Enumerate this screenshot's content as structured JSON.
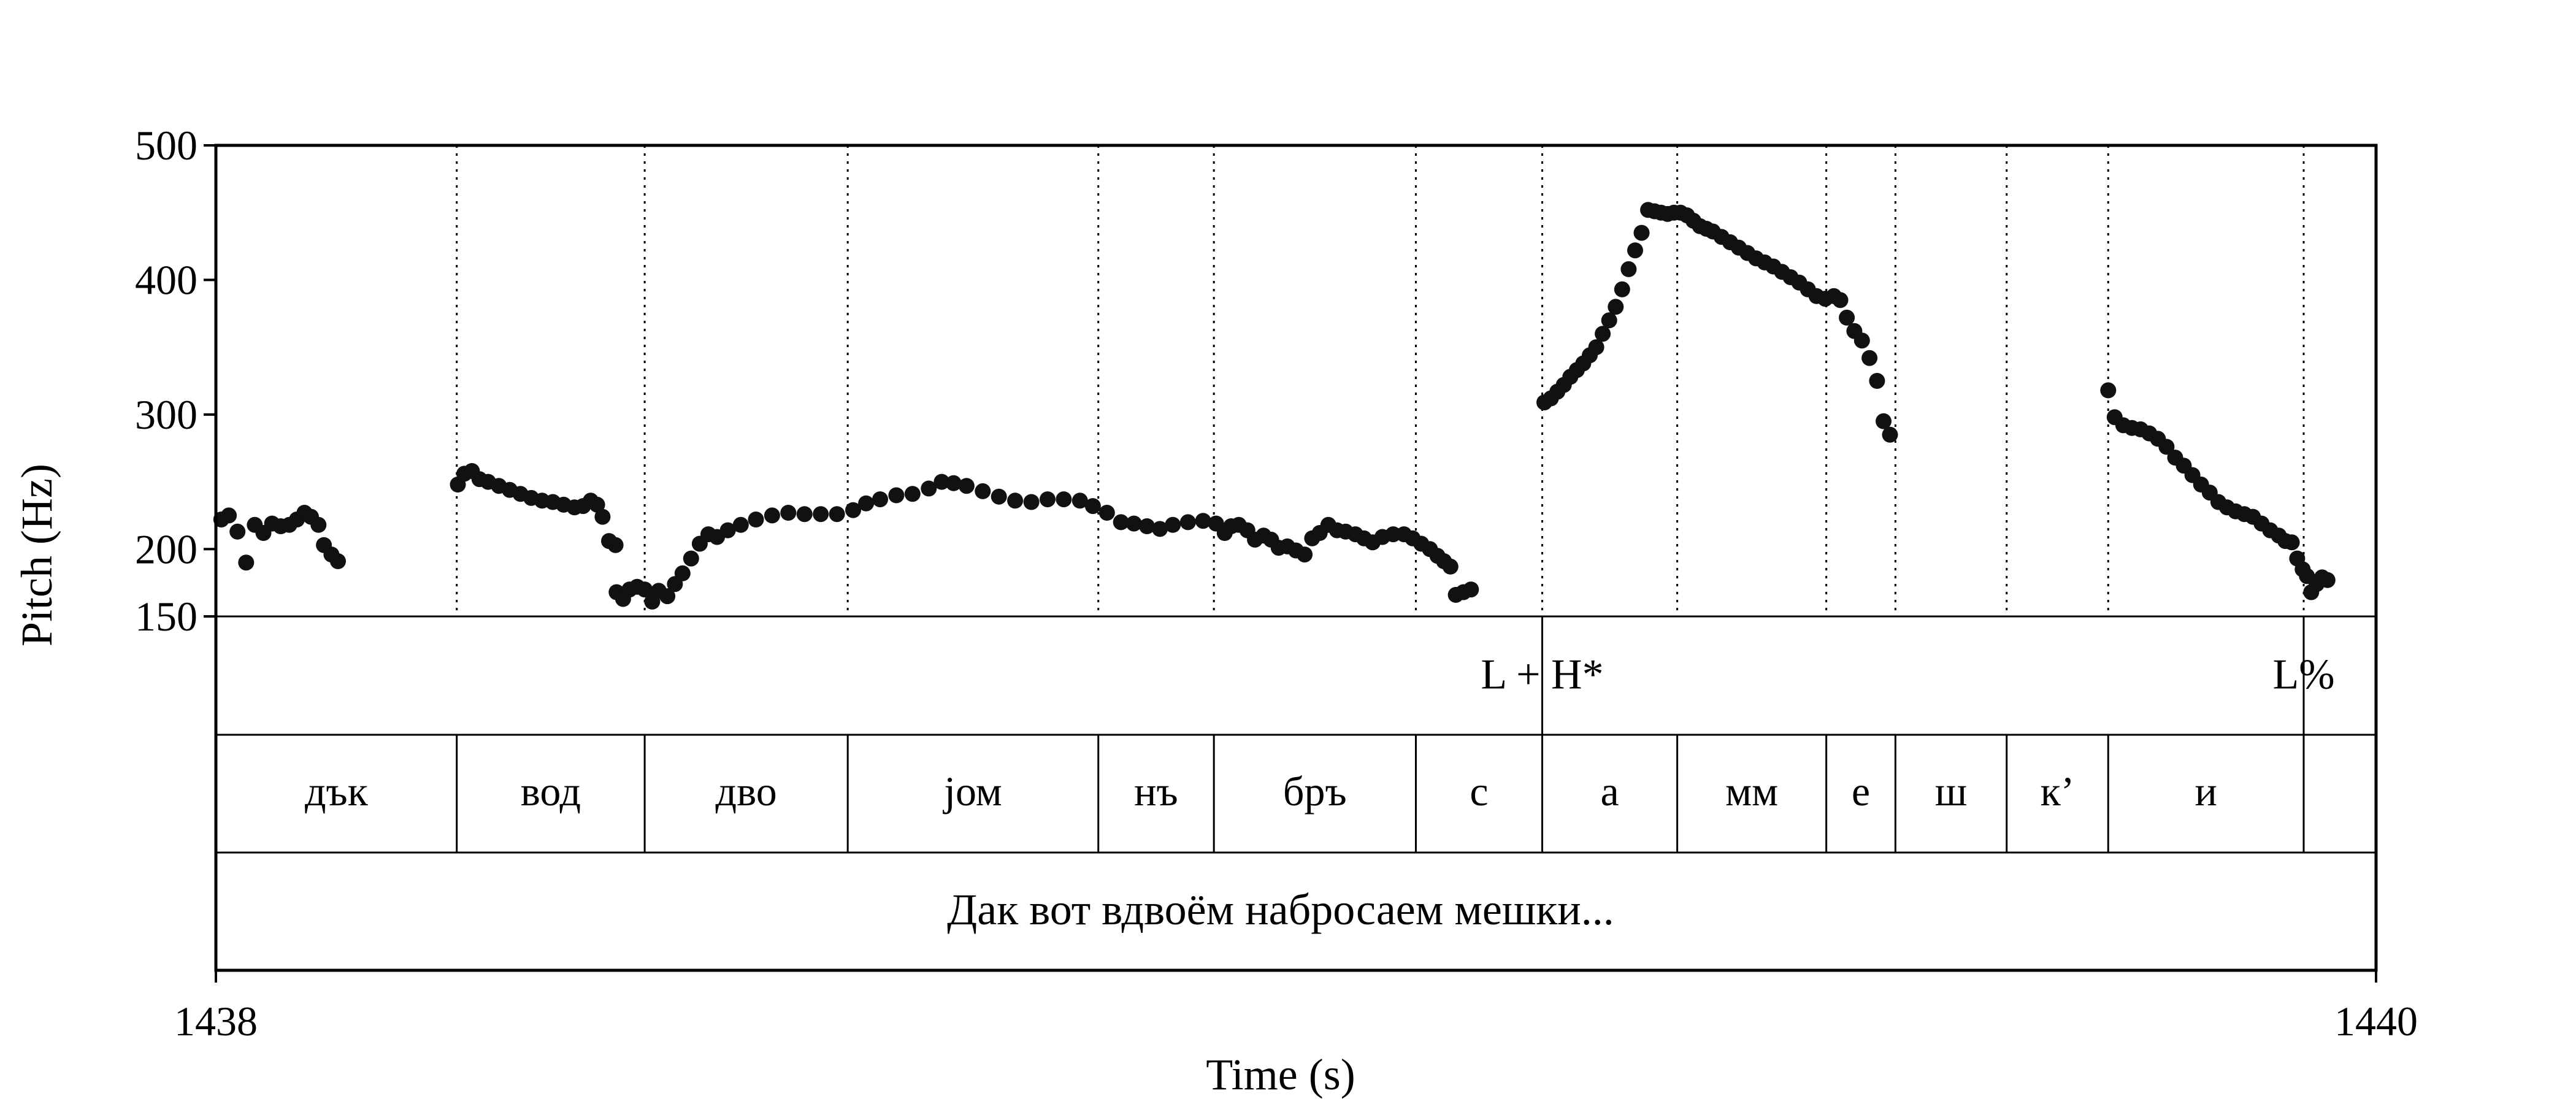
{
  "chart_data": {
    "type": "scatter",
    "xlabel": "Time (s)",
    "ylabel": "Pitch (Hz)",
    "xlim": [
      1438,
      1440
    ],
    "ylim": [
      150,
      500
    ],
    "x_ticks": [
      "1438",
      "1440"
    ],
    "y_ticks": [
      {
        "value": 500,
        "label": "500"
      },
      {
        "value": 400,
        "label": "400"
      },
      {
        "value": 300,
        "label": "300"
      },
      {
        "value": 200,
        "label": "200"
      },
      {
        "value": 150,
        "label": "150"
      }
    ],
    "grid": false,
    "boundaries": [
      1438.223,
      1438.397,
      1438.585,
      1438.817,
      1438.924,
      1439.111,
      1439.228,
      1439.353,
      1439.491,
      1439.555,
      1439.658,
      1439.752,
      1439.933
    ],
    "tone_tier": [
      {
        "label": "L + H*",
        "time": 1439.228
      },
      {
        "label": "L%",
        "time": 1439.933
      }
    ],
    "segments": [
      {
        "label": "дък",
        "start": 1438.0,
        "end": 1438.223
      },
      {
        "label": "вод",
        "start": 1438.223,
        "end": 1438.397
      },
      {
        "label": "дво",
        "start": 1438.397,
        "end": 1438.585
      },
      {
        "label": "jом",
        "start": 1438.585,
        "end": 1438.817
      },
      {
        "label": "нъ",
        "start": 1438.817,
        "end": 1438.924
      },
      {
        "label": "бръ",
        "start": 1438.924,
        "end": 1439.111
      },
      {
        "label": "с",
        "start": 1439.111,
        "end": 1439.228
      },
      {
        "label": "а",
        "start": 1439.228,
        "end": 1439.353
      },
      {
        "label": "мм",
        "start": 1439.353,
        "end": 1439.491
      },
      {
        "label": "е",
        "start": 1439.491,
        "end": 1439.555
      },
      {
        "label": "ш",
        "start": 1439.555,
        "end": 1439.658
      },
      {
        "label": "к’",
        "start": 1439.658,
        "end": 1439.752
      },
      {
        "label": "и",
        "start": 1439.752,
        "end": 1439.933
      },
      {
        "label": "",
        "start": 1439.933,
        "end": 1440.0
      }
    ],
    "sentence": "Дак вот вдвоём набросаем мешки...",
    "pitch_contours": [
      [
        [
          1438.005,
          222
        ],
        [
          1438.012,
          225
        ],
        [
          1438.02,
          213
        ],
        [
          1438.028,
          190
        ],
        [
          1438.036,
          218
        ],
        [
          1438.044,
          212
        ],
        [
          1438.052,
          219
        ],
        [
          1438.06,
          217
        ],
        [
          1438.068,
          218
        ],
        [
          1438.075,
          222
        ],
        [
          1438.082,
          227
        ],
        [
          1438.088,
          224
        ],
        [
          1438.095,
          218
        ],
        [
          1438.1,
          203
        ],
        [
          1438.107,
          196
        ],
        [
          1438.113,
          191
        ]
      ],
      [
        [
          1438.224,
          248
        ],
        [
          1438.23,
          256
        ],
        [
          1438.237,
          258
        ],
        [
          1438.244,
          252
        ],
        [
          1438.252,
          250
        ],
        [
          1438.262,
          247
        ],
        [
          1438.272,
          244
        ],
        [
          1438.282,
          241
        ],
        [
          1438.292,
          238
        ],
        [
          1438.302,
          236
        ],
        [
          1438.312,
          235
        ],
        [
          1438.322,
          233
        ],
        [
          1438.332,
          231
        ],
        [
          1438.34,
          232
        ],
        [
          1438.347,
          236
        ],
        [
          1438.353,
          233
        ],
        [
          1438.358,
          224
        ],
        [
          1438.364,
          206
        ],
        [
          1438.37,
          203
        ]
      ],
      [
        [
          1438.371,
          168
        ],
        [
          1438.377,
          163
        ],
        [
          1438.383,
          170
        ],
        [
          1438.39,
          172
        ],
        [
          1438.397,
          170
        ],
        [
          1438.404,
          161
        ],
        [
          1438.41,
          169
        ],
        [
          1438.418,
          165
        ],
        [
          1438.425,
          174
        ],
        [
          1438.432,
          182
        ],
        [
          1438.44,
          193
        ],
        [
          1438.448,
          204
        ],
        [
          1438.456,
          211
        ],
        [
          1438.464,
          209
        ],
        [
          1438.474,
          214
        ],
        [
          1438.486,
          218
        ],
        [
          1438.5,
          222
        ],
        [
          1438.515,
          225
        ],
        [
          1438.53,
          227
        ],
        [
          1438.545,
          226
        ],
        [
          1438.56,
          226
        ],
        [
          1438.575,
          226
        ],
        [
          1438.59,
          229
        ],
        [
          1438.602,
          234
        ],
        [
          1438.615,
          237
        ],
        [
          1438.63,
          240
        ],
        [
          1438.645,
          241
        ],
        [
          1438.66,
          245
        ],
        [
          1438.672,
          250
        ],
        [
          1438.683,
          249
        ],
        [
          1438.695,
          247
        ],
        [
          1438.71,
          243
        ],
        [
          1438.725,
          239
        ],
        [
          1438.74,
          236
        ],
        [
          1438.755,
          235
        ],
        [
          1438.77,
          237
        ],
        [
          1438.785,
          237
        ],
        [
          1438.8,
          236
        ],
        [
          1438.812,
          232
        ],
        [
          1438.825,
          227
        ],
        [
          1438.838,
          220
        ],
        [
          1438.85,
          219
        ],
        [
          1438.862,
          217
        ],
        [
          1438.874,
          215
        ],
        [
          1438.886,
          218
        ],
        [
          1438.9,
          220
        ],
        [
          1438.914,
          221
        ],
        [
          1438.926,
          219
        ],
        [
          1438.934,
          212
        ],
        [
          1438.94,
          217
        ],
        [
          1438.947,
          218
        ],
        [
          1438.955,
          214
        ],
        [
          1438.962,
          207
        ],
        [
          1438.97,
          210
        ],
        [
          1438.977,
          207
        ],
        [
          1438.984,
          201
        ],
        [
          1438.992,
          202
        ],
        [
          1439.0,
          199
        ],
        [
          1439.008,
          196
        ],
        [
          1439.015,
          208
        ],
        [
          1439.022,
          212
        ],
        [
          1439.03,
          218
        ],
        [
          1439.038,
          214
        ],
        [
          1439.046,
          213
        ],
        [
          1439.055,
          211
        ],
        [
          1439.063,
          208
        ],
        [
          1439.071,
          205
        ],
        [
          1439.08,
          209
        ],
        [
          1439.09,
          211
        ],
        [
          1439.1,
          211
        ],
        [
          1439.108,
          208
        ],
        [
          1439.116,
          204
        ],
        [
          1439.124,
          200
        ],
        [
          1439.131,
          195
        ],
        [
          1439.137,
          191
        ],
        [
          1439.143,
          187
        ]
      ],
      [
        [
          1439.148,
          166
        ],
        [
          1439.155,
          168
        ],
        [
          1439.162,
          170
        ]
      ],
      [
        [
          1439.23,
          309
        ],
        [
          1439.236,
          312
        ],
        [
          1439.242,
          317
        ],
        [
          1439.248,
          322
        ],
        [
          1439.254,
          328
        ],
        [
          1439.26,
          333
        ],
        [
          1439.266,
          338
        ],
        [
          1439.272,
          344
        ],
        [
          1439.278,
          350
        ],
        [
          1439.284,
          360
        ],
        [
          1439.29,
          370
        ],
        [
          1439.296,
          380
        ],
        [
          1439.302,
          393
        ],
        [
          1439.308,
          408
        ],
        [
          1439.314,
          422
        ],
        [
          1439.32,
          435
        ],
        [
          1439.326,
          452
        ],
        [
          1439.332,
          451
        ],
        [
          1439.338,
          450
        ],
        [
          1439.344,
          449
        ],
        [
          1439.35,
          450
        ],
        [
          1439.356,
          450
        ],
        [
          1439.362,
          448
        ],
        [
          1439.368,
          444
        ],
        [
          1439.374,
          440
        ],
        [
          1439.38,
          438
        ],
        [
          1439.386,
          436
        ],
        [
          1439.394,
          432
        ],
        [
          1439.402,
          428
        ],
        [
          1439.41,
          424
        ],
        [
          1439.418,
          420
        ],
        [
          1439.426,
          416
        ],
        [
          1439.434,
          413
        ],
        [
          1439.442,
          410
        ],
        [
          1439.45,
          406
        ],
        [
          1439.458,
          402
        ],
        [
          1439.466,
          398
        ],
        [
          1439.474,
          393
        ],
        [
          1439.482,
          388
        ],
        [
          1439.49,
          386
        ],
        [
          1439.498,
          388
        ],
        [
          1439.504,
          385
        ],
        [
          1439.51,
          372
        ],
        [
          1439.517,
          362
        ],
        [
          1439.524,
          355
        ],
        [
          1439.531,
          342
        ],
        [
          1439.538,
          325
        ],
        [
          1439.544,
          295
        ],
        [
          1439.55,
          285
        ]
      ],
      [
        [
          1439.752,
          318
        ],
        [
          1439.758,
          298
        ],
        [
          1439.766,
          292
        ],
        [
          1439.774,
          290
        ],
        [
          1439.782,
          289
        ],
        [
          1439.79,
          286
        ],
        [
          1439.798,
          282
        ],
        [
          1439.806,
          276
        ],
        [
          1439.814,
          268
        ],
        [
          1439.822,
          262
        ],
        [
          1439.83,
          255
        ],
        [
          1439.838,
          248
        ],
        [
          1439.846,
          242
        ],
        [
          1439.854,
          235
        ],
        [
          1439.862,
          231
        ],
        [
          1439.87,
          228
        ],
        [
          1439.878,
          226
        ],
        [
          1439.886,
          224
        ],
        [
          1439.894,
          219
        ],
        [
          1439.902,
          214
        ],
        [
          1439.91,
          210
        ],
        [
          1439.916,
          206
        ],
        [
          1439.922,
          205
        ],
        [
          1439.927,
          193
        ],
        [
          1439.932,
          185
        ],
        [
          1439.936,
          180
        ],
        [
          1439.94,
          168
        ],
        [
          1439.945,
          174
        ],
        [
          1439.95,
          179
        ],
        [
          1439.955,
          177
        ]
      ]
    ]
  }
}
